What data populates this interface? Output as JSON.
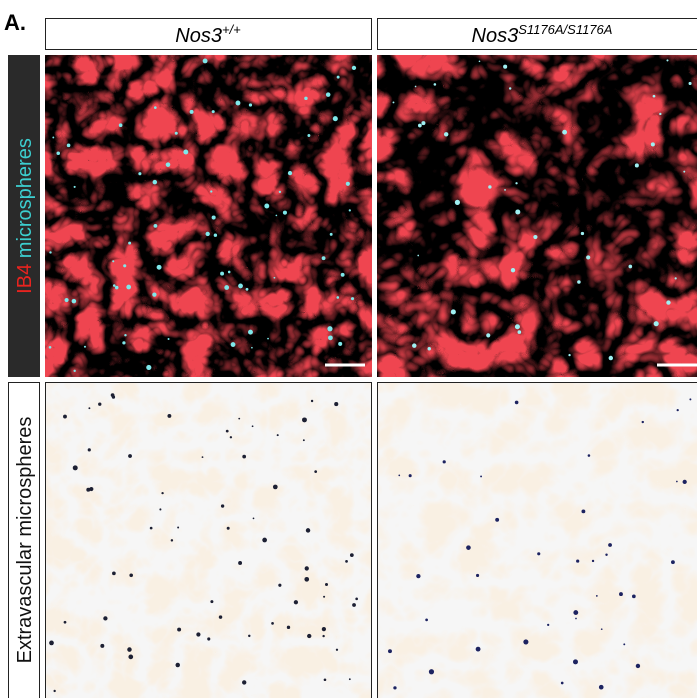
{
  "panel_label": "A.",
  "columns": [
    {
      "gene": "Nos3",
      "genotype": "+/+"
    },
    {
      "gene": "Nos3",
      "genotype": "S1176A/S1176A"
    }
  ],
  "rows": [
    {
      "label_parts": [
        "IB4",
        "microspheres"
      ]
    },
    {
      "label": "Extravascular microspheres"
    }
  ]
}
